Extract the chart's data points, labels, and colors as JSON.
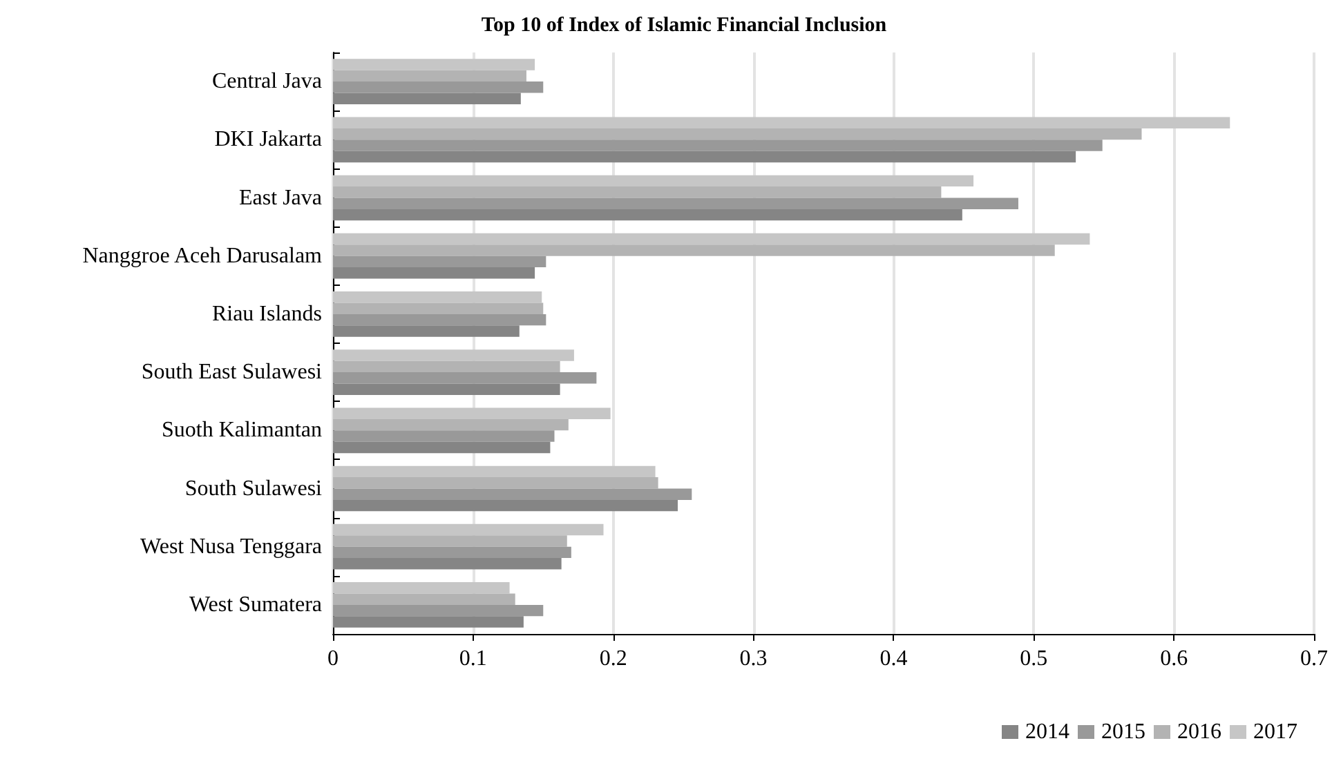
{
  "chart_data": {
    "type": "bar",
    "orientation": "horizontal",
    "title": "Top 10 of Index of Islamic Financial Inclusion",
    "categories": [
      "Central Java",
      "DKI Jakarta",
      "East Java",
      "Nanggroe Aceh Darusalam",
      "Riau Islands",
      "South East Sulawesi",
      "Suoth Kalimantan",
      "South Sulawesi",
      "West Nusa Tenggara",
      "West Sumatera"
    ],
    "series": [
      {
        "name": "2014",
        "color": "#858585",
        "values": [
          0.134,
          0.53,
          0.449,
          0.144,
          0.133,
          0.162,
          0.155,
          0.246,
          0.163,
          0.136
        ]
      },
      {
        "name": "2015",
        "color": "#999999",
        "values": [
          0.15,
          0.549,
          0.489,
          0.152,
          0.152,
          0.188,
          0.158,
          0.256,
          0.17,
          0.15
        ]
      },
      {
        "name": "2016",
        "color": "#b3b3b3",
        "values": [
          0.138,
          0.577,
          0.434,
          0.515,
          0.15,
          0.162,
          0.168,
          0.232,
          0.167,
          0.13
        ]
      },
      {
        "name": "2017",
        "color": "#c6c6c6",
        "values": [
          0.144,
          0.64,
          0.457,
          0.54,
          0.149,
          0.172,
          0.198,
          0.23,
          0.193,
          0.126
        ]
      }
    ],
    "xlim": [
      0,
      0.7
    ],
    "xticks": [
      0,
      0.1,
      0.2,
      0.3,
      0.4,
      0.5,
      0.6,
      0.7
    ],
    "grid": "x",
    "legend": "bottom right"
  }
}
